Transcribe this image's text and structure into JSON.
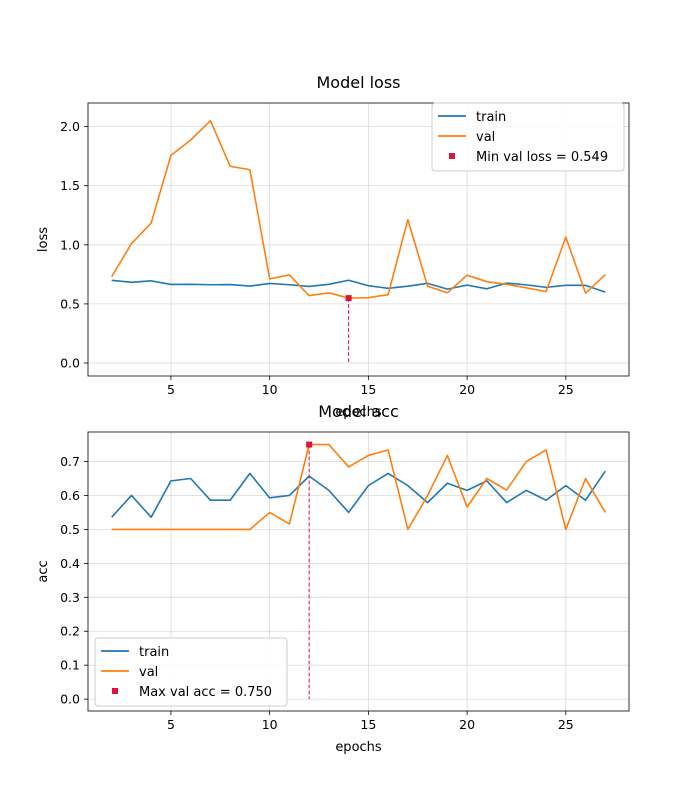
{
  "colors": {
    "train": "#1f77b4",
    "val": "#ff7f0e",
    "marker": "#dc143c",
    "grid": "#d9d9d9"
  },
  "chart_data": [
    {
      "type": "line",
      "title": "Model loss",
      "xlabel": "epochs",
      "ylabel": "loss",
      "xlim": [
        0.8,
        28.2
      ],
      "ylim": [
        -0.11,
        2.2
      ],
      "xticks": [
        5,
        10,
        15,
        20,
        25
      ],
      "yticks": [
        0.0,
        0.5,
        1.0,
        1.5,
        2.0
      ],
      "ytick_labels": [
        "0.0",
        "0.5",
        "1.0",
        "1.5",
        "2.0"
      ],
      "grid": true,
      "legend": {
        "placement": "top-right"
      },
      "x": [
        2,
        3,
        4,
        5,
        6,
        7,
        8,
        9,
        10,
        11,
        12,
        13,
        14,
        15,
        16,
        17,
        18,
        19,
        20,
        21,
        22,
        23,
        24,
        25,
        26,
        27
      ],
      "series": [
        {
          "name": "train",
          "color_key": "train",
          "values": [
            0.7,
            0.683,
            0.695,
            0.665,
            0.666,
            0.662,
            0.664,
            0.651,
            0.673,
            0.662,
            0.648,
            0.666,
            0.7,
            0.654,
            0.632,
            0.65,
            0.674,
            0.625,
            0.659,
            0.628,
            0.676,
            0.661,
            0.64,
            0.657,
            0.657,
            0.6
          ]
        },
        {
          "name": "val",
          "color_key": "val",
          "values": [
            0.73,
            1.01,
            1.185,
            1.757,
            1.887,
            2.05,
            1.665,
            1.635,
            0.712,
            0.745,
            0.57,
            0.594,
            0.549,
            0.553,
            0.578,
            1.213,
            0.65,
            0.594,
            0.743,
            0.688,
            0.666,
            0.636,
            0.604,
            1.065,
            0.591,
            0.748
          ]
        }
      ],
      "marker": {
        "label": "Min val loss = 0.549",
        "x": 14,
        "y": 0.549
      }
    },
    {
      "type": "line",
      "title": "Model acc",
      "xlabel": "epochs",
      "ylabel": "acc",
      "xlim": [
        0.8,
        28.2
      ],
      "ylim": [
        -0.035,
        0.787
      ],
      "xticks": [
        5,
        10,
        15,
        20,
        25
      ],
      "yticks": [
        0.0,
        0.1,
        0.2,
        0.3,
        0.4,
        0.5,
        0.6,
        0.7
      ],
      "ytick_labels": [
        "0.0",
        "0.1",
        "0.2",
        "0.3",
        "0.4",
        "0.5",
        "0.6",
        "0.7"
      ],
      "grid": true,
      "legend": {
        "placement": "bottom-left"
      },
      "x": [
        2,
        3,
        4,
        5,
        6,
        7,
        8,
        9,
        10,
        11,
        12,
        13,
        14,
        15,
        16,
        17,
        18,
        19,
        20,
        21,
        22,
        23,
        24,
        25,
        26,
        27
      ],
      "series": [
        {
          "name": "train",
          "color_key": "train",
          "values": [
            0.536,
            0.6,
            0.536,
            0.643,
            0.65,
            0.586,
            0.586,
            0.665,
            0.593,
            0.6,
            0.657,
            0.615,
            0.55,
            0.629,
            0.665,
            0.629,
            0.579,
            0.636,
            0.615,
            0.643,
            0.579,
            0.615,
            0.586,
            0.629,
            0.586,
            0.672
          ]
        },
        {
          "name": "val",
          "color_key": "val",
          "values": [
            0.5,
            0.5,
            0.5,
            0.5,
            0.5,
            0.5,
            0.5,
            0.5,
            0.55,
            0.516,
            0.75,
            0.75,
            0.684,
            0.718,
            0.734,
            0.5,
            0.6,
            0.718,
            0.566,
            0.65,
            0.616,
            0.7,
            0.734,
            0.5,
            0.65,
            0.55
          ]
        }
      ],
      "marker": {
        "label": "Max val acc = 0.750",
        "x": 12,
        "y": 0.75
      }
    }
  ]
}
